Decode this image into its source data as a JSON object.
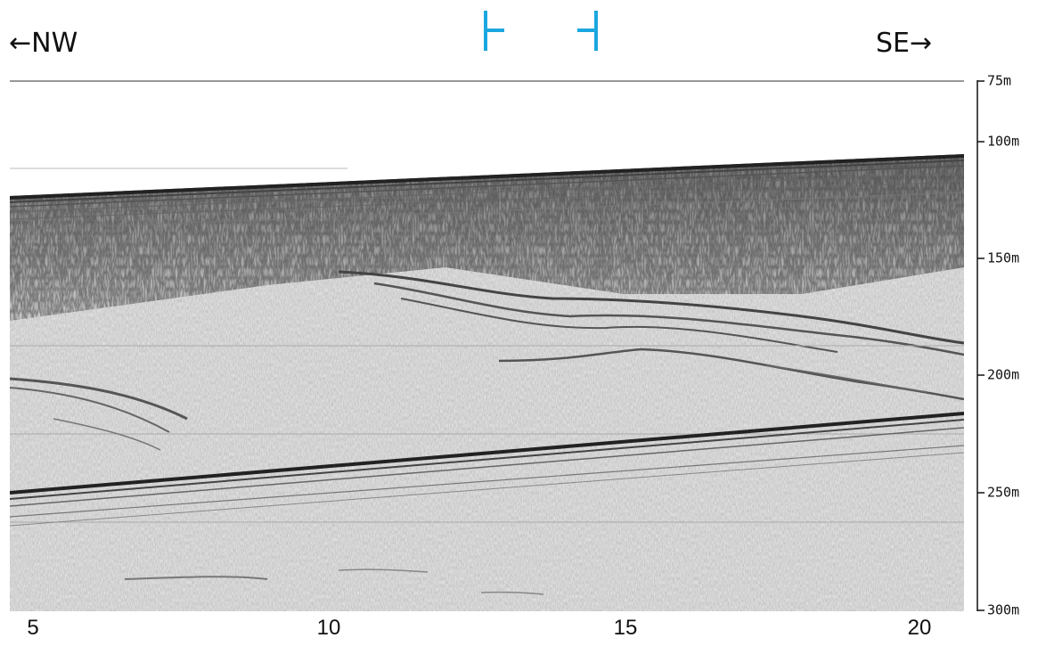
{
  "directions": {
    "left": "←NW",
    "right": "SE→"
  },
  "x_axis": {
    "ticks": [
      "5",
      "10",
      "15",
      "20"
    ]
  },
  "depth_axis": {
    "labels": [
      "75m",
      "100m",
      "150m",
      "200m",
      "250m",
      "300m"
    ]
  },
  "colors": {
    "marker": "#1ba7e0",
    "axis": "#111111",
    "background": "#ffffff",
    "sediment": "#d9d9d9",
    "reflector": "#3a3a3a"
  }
}
